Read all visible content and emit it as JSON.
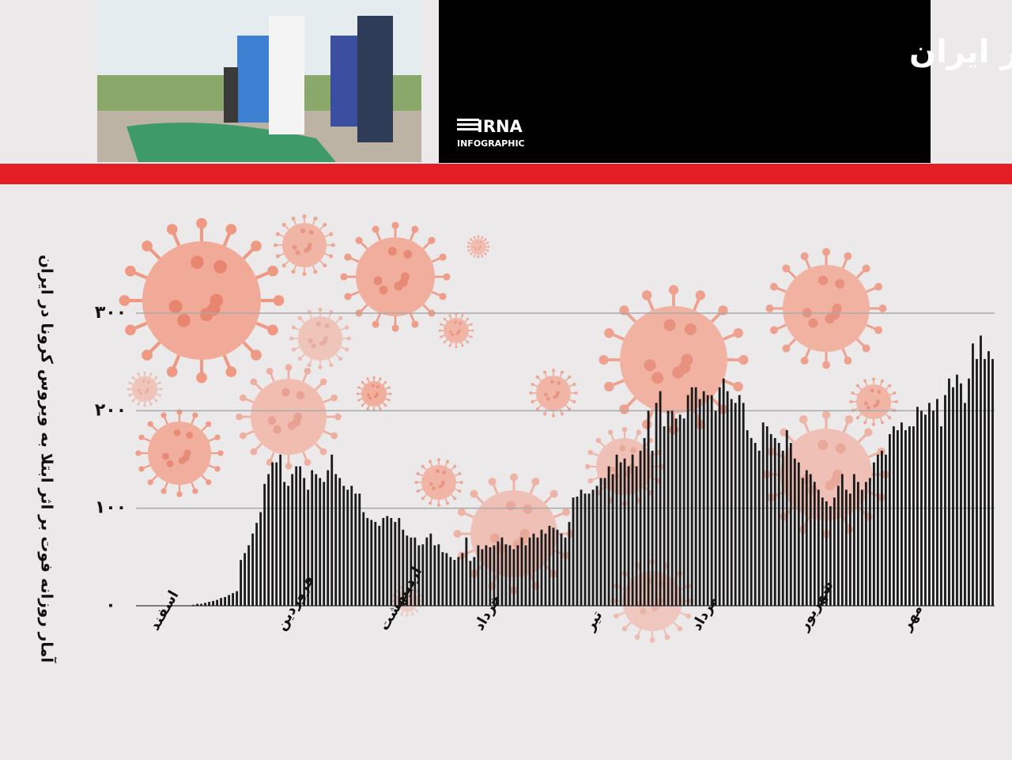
{
  "header": {
    "title": "فراز کرونا و فرود زندگی در ایران",
    "logo": "IRNA",
    "logo_sub": "INFOGRAPHIC"
  },
  "chart_data": {
    "type": "bar",
    "y_label": "آمار روزانه فوت بر اثر ابتلا به ویروس کرونا در ایران",
    "color": "#1a1a1a",
    "ylim": [
      0,
      300
    ],
    "yticks": [
      {
        "value": 0,
        "label": "۰"
      },
      {
        "value": 100,
        "label": "۱۰۰"
      },
      {
        "value": 200,
        "label": "۲۰۰"
      },
      {
        "value": 300,
        "label": "۳۰۰"
      }
    ],
    "grid": true,
    "categories": [
      null,
      null,
      null,
      null,
      "اسفند",
      null,
      null,
      null,
      null,
      null,
      null,
      null,
      null,
      null,
      null,
      null,
      null,
      null,
      null,
      null,
      null,
      null,
      null,
      null,
      null,
      null,
      null,
      null,
      null,
      null,
      null,
      null,
      null,
      null,
      null,
      null,
      "فروردین",
      null,
      null,
      null,
      null,
      null,
      null,
      null,
      null,
      null,
      null,
      null,
      null,
      null,
      null,
      null,
      null,
      null,
      null,
      null,
      null,
      null,
      null,
      null,
      null,
      null,
      "اردیبهشت",
      null,
      null,
      null,
      null,
      null,
      null,
      null,
      null,
      null,
      null,
      null,
      null,
      null,
      null,
      null,
      null,
      null,
      null,
      null,
      null,
      null,
      null,
      null,
      "خرداد",
      null,
      null,
      null,
      null,
      null,
      null,
      null,
      null,
      null,
      null,
      null,
      null,
      null,
      null,
      null,
      null,
      null,
      null,
      null,
      null,
      null,
      null,
      null,
      null,
      null,
      null,
      null,
      "تیر",
      null,
      null,
      null,
      null,
      null,
      null,
      null,
      null,
      null,
      null,
      null,
      null,
      null,
      null,
      null,
      null,
      null,
      null,
      null,
      null,
      null,
      null,
      null,
      null,
      null,
      null,
      "مرداد",
      null,
      null,
      null,
      null,
      null,
      null,
      null,
      null,
      null,
      null,
      null,
      null,
      null,
      null,
      null,
      null,
      null,
      null,
      null,
      null,
      null,
      null,
      null,
      null,
      null,
      null,
      "شهریور",
      null,
      null,
      null,
      null,
      null,
      null,
      null,
      null,
      null,
      null,
      null,
      null,
      null,
      null,
      null,
      null,
      null,
      null,
      null,
      null,
      null,
      null,
      null,
      null,
      null,
      "مهر",
      null,
      null,
      null,
      null,
      null,
      null,
      null,
      null,
      null,
      null,
      null,
      null,
      null,
      null,
      null,
      null,
      null,
      null,
      null,
      null,
      null,
      null
    ],
    "values": [
      null,
      null,
      null,
      null,
      null,
      null,
      null,
      null,
      null,
      null,
      null,
      null,
      null,
      null,
      1,
      2,
      2,
      3,
      4,
      5,
      6,
      8,
      9,
      11,
      13,
      15,
      47,
      54,
      62,
      74,
      85,
      96,
      125,
      135,
      147,
      147,
      155,
      127,
      123,
      135,
      143,
      143,
      131,
      119,
      139,
      135,
      131,
      127,
      139,
      155,
      135,
      131,
      123,
      119,
      123,
      115,
      115,
      96,
      90,
      88,
      86,
      82,
      90,
      92,
      90,
      86,
      90,
      78,
      72,
      70,
      70,
      62,
      63,
      70,
      74,
      62,
      63,
      55,
      54,
      50,
      47,
      50,
      54,
      70,
      46,
      50,
      62,
      58,
      62,
      60,
      62,
      66,
      70,
      63,
      62,
      58,
      62,
      70,
      62,
      70,
      74,
      70,
      78,
      74,
      82,
      80,
      78,
      74,
      70,
      86,
      111,
      112,
      119,
      115,
      115,
      119,
      123,
      131,
      131,
      143,
      135,
      155,
      147,
      151,
      143,
      155,
      143,
      159,
      172,
      200,
      159,
      208,
      220,
      184,
      200,
      200,
      192,
      196,
      192,
      216,
      224,
      224,
      212,
      220,
      216,
      216,
      200,
      224,
      233,
      220,
      212,
      208,
      216,
      208,
      180,
      172,
      167,
      159,
      188,
      184,
      176,
      172,
      167,
      159,
      180,
      167,
      151,
      147,
      131,
      139,
      135,
      127,
      119,
      111,
      107,
      102,
      111,
      123,
      135,
      119,
      115,
      135,
      127,
      119,
      127,
      131,
      147,
      155,
      159,
      155,
      176,
      184,
      180,
      188,
      180,
      184,
      184,
      204,
      200,
      196,
      208,
      200,
      212,
      184,
      216,
      233,
      224,
      237,
      228,
      208,
      233,
      269,
      253,
      277,
      253,
      261,
      253
    ]
  }
}
